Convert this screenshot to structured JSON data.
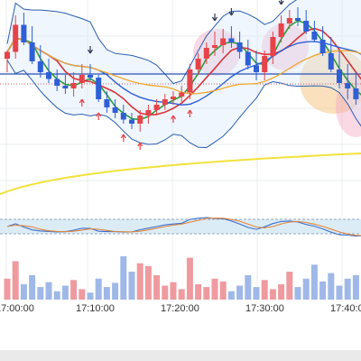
{
  "colors": {
    "up": "#e8424a",
    "down": "#2f5fd6",
    "bb": "#2a5fb0",
    "ma_green": "#2c9c3a",
    "ma_red": "#d8343a",
    "ma_blue": "#2f5fd6",
    "ma_orange": "#f0a830",
    "ma_yellow": "#f2e23c",
    "hline_blue": "#2a4fb8",
    "hline_red": "#d46060",
    "grid": "#e9ecef",
    "vol_up": "#ef9a9f",
    "vol_down": "#9fb8e8",
    "osc_band": "#dcecf6",
    "highlight_pink": "#f4a8c4",
    "highlight_orange": "#f5c27a"
  },
  "x_axis": {
    "ticks": [
      "17:00:00",
      "17:10:00",
      "17:20:00",
      "17:30:00",
      "17:40:00"
    ]
  },
  "chart_data": {
    "type": "candlestick",
    "x": [
      "16:59:00",
      "17:00:00",
      "17:01:00",
      "17:02:00",
      "17:03:00",
      "17:04:00",
      "17:05:00",
      "17:06:00",
      "17:07:00",
      "17:08:00",
      "17:09:00",
      "17:10:00",
      "17:11:00",
      "17:12:00",
      "17:13:00",
      "17:14:00",
      "17:15:00",
      "17:16:00",
      "17:17:00",
      "17:18:00",
      "17:19:00",
      "17:20:00",
      "17:21:00",
      "17:22:00",
      "17:23:00",
      "17:24:00",
      "17:25:00",
      "17:26:00",
      "17:27:00",
      "17:28:00",
      "17:29:00",
      "17:30:00",
      "17:31:00",
      "17:32:00",
      "17:33:00",
      "17:34:00",
      "17:35:00",
      "17:36:00",
      "17:37:00",
      "17:38:00",
      "17:39:00",
      "17:40:00",
      "17:41:00",
      "17:42:00"
    ],
    "open": [
      60,
      65,
      85,
      72,
      58,
      50,
      45,
      40,
      38,
      42,
      48,
      46,
      30,
      24,
      20,
      15,
      12,
      18,
      22,
      26,
      30,
      32,
      35,
      52,
      60,
      68,
      70,
      75,
      72,
      65,
      55,
      50,
      62,
      76,
      86,
      90,
      88,
      80,
      74,
      64,
      52,
      42,
      38,
      30
    ],
    "high": [
      66,
      92,
      94,
      84,
      70,
      60,
      52,
      48,
      50,
      56,
      56,
      48,
      36,
      30,
      26,
      20,
      22,
      26,
      30,
      34,
      36,
      40,
      56,
      64,
      72,
      80,
      82,
      84,
      80,
      74,
      66,
      66,
      80,
      92,
      96,
      98,
      96,
      88,
      84,
      76,
      66,
      56,
      50,
      44
    ],
    "low": [
      50,
      60,
      70,
      56,
      46,
      42,
      36,
      34,
      32,
      38,
      44,
      28,
      20,
      16,
      12,
      8,
      6,
      12,
      18,
      22,
      26,
      28,
      30,
      48,
      56,
      62,
      64,
      68,
      60,
      52,
      44,
      44,
      56,
      72,
      82,
      84,
      78,
      72,
      62,
      50,
      38,
      30,
      26,
      22
    ],
    "close": [
      65,
      85,
      72,
      58,
      50,
      45,
      40,
      38,
      42,
      48,
      46,
      30,
      24,
      20,
      15,
      12,
      18,
      22,
      26,
      30,
      32,
      35,
      52,
      60,
      68,
      70,
      75,
      72,
      65,
      55,
      50,
      62,
      76,
      86,
      90,
      88,
      80,
      74,
      64,
      52,
      42,
      38,
      30,
      26
    ],
    "volume": [
      30,
      55,
      22,
      35,
      18,
      25,
      12,
      20,
      28,
      15,
      10,
      30,
      18,
      24,
      62,
      40,
      52,
      48,
      35,
      20,
      25,
      15,
      60,
      22,
      18,
      30,
      26,
      12,
      20,
      35,
      18,
      28,
      15,
      22,
      40,
      18,
      30,
      50,
      26,
      38,
      20,
      30,
      35,
      28
    ],
    "ylim": [
      0,
      100
    ]
  }
}
